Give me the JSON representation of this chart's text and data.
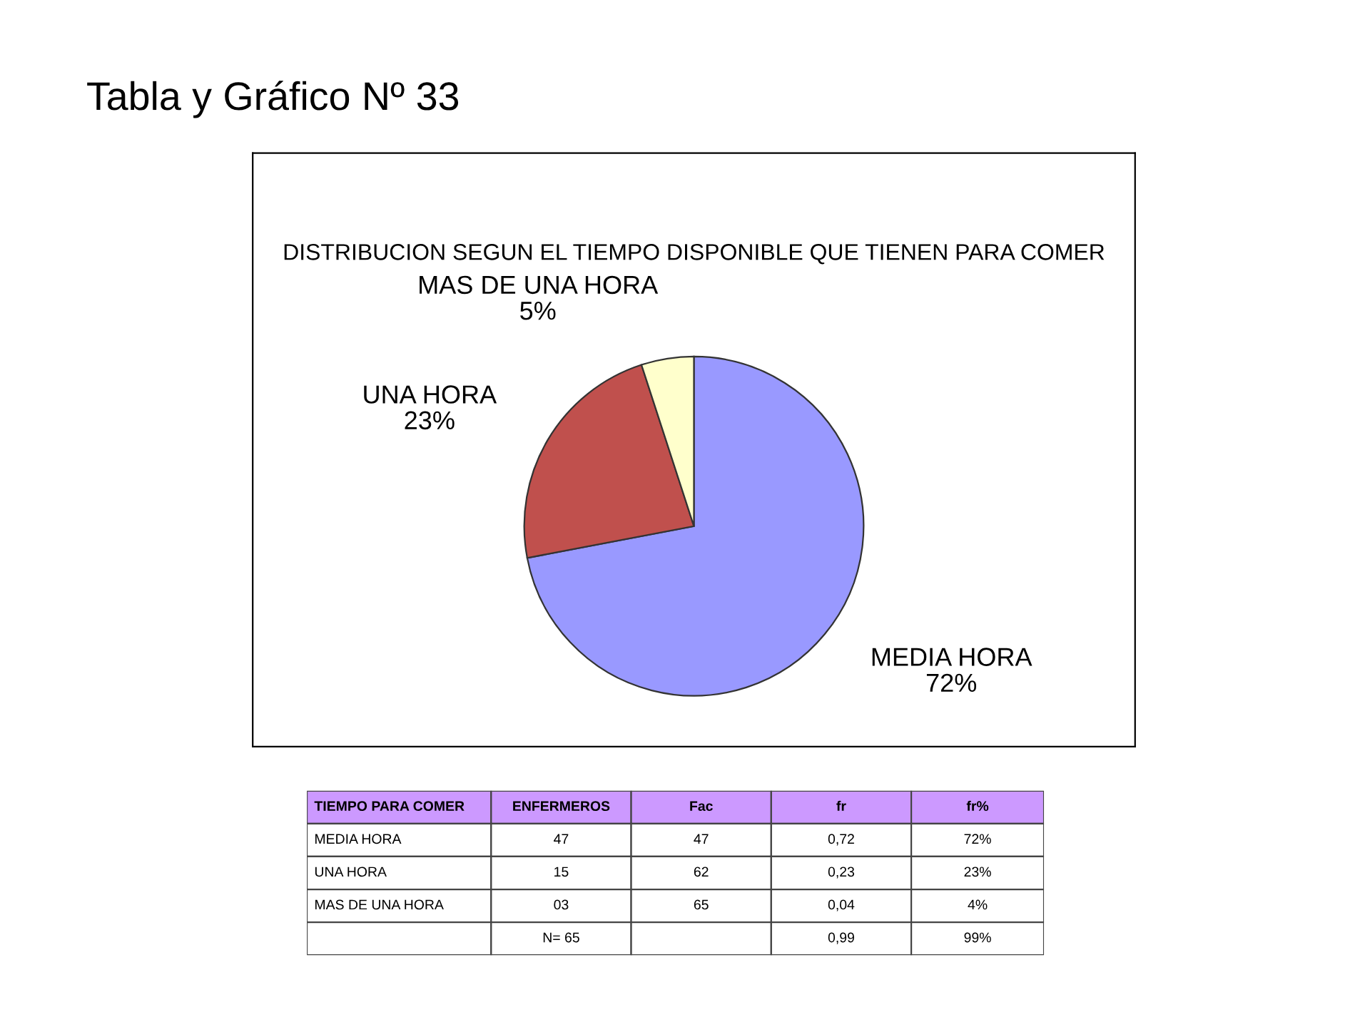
{
  "chart_data": [
    {
      "type": "pie",
      "title": "DISTRIBUCION SEGUN EL TIEMPO DISPONIBLE QUE TIENEN PARA COMER",
      "annotations": [
        "Tabla y Gráfico Nº 33"
      ],
      "categories": [
        "MEDIA HORA",
        "UNA HORA",
        "MAS DE UNA HORA"
      ],
      "values": [
        72,
        23,
        5
      ],
      "value_labels": [
        "72%",
        "23%",
        "5%"
      ],
      "colors": [
        "#9999ff",
        "#c0504d",
        "#ffffcc"
      ],
      "legend": false
    },
    {
      "type": "other",
      "annotations": [
        "TIEMPO PARA COMER",
        "ENFERMEROS",
        "Fac",
        "fr",
        "fr%",
        "MEDIA HORA",
        "47",
        "47",
        "0,72",
        "72%",
        "UNA HORA",
        "15",
        "62",
        "0,23",
        "23%",
        "MAS DE UNA HORA",
        "03",
        "65",
        "0,04",
        "4%",
        null,
        "N= 65",
        null,
        "0,99",
        "99%"
      ]
    }
  ]
}
